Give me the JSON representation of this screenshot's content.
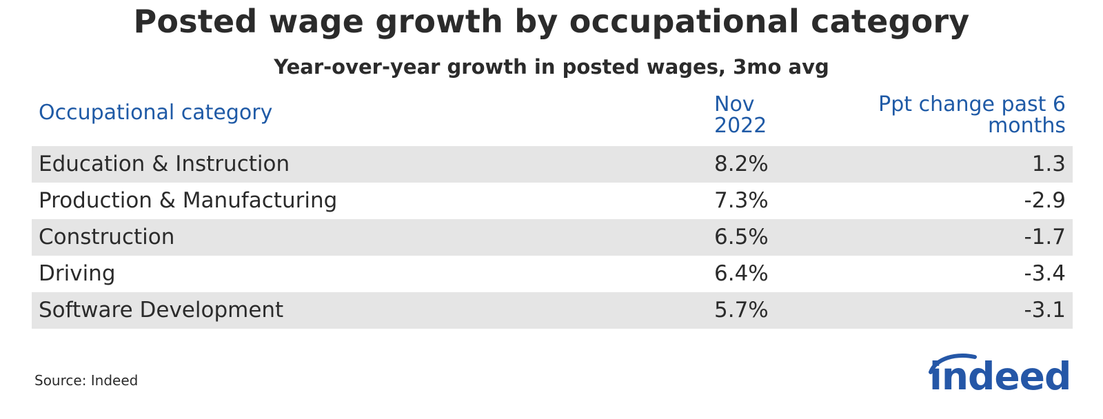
{
  "title": "Posted wage growth by occupational category",
  "subtitle": "Year-over-year growth in posted wages, 3mo avg",
  "source": "Source: Indeed",
  "logo_text": "indeed",
  "colors": {
    "header_text": "#1f5aa6",
    "row_shade": "#e5e5e5",
    "logo": "#2557a7"
  },
  "chart_data": {
    "type": "table",
    "title": "Posted wage growth by occupational category",
    "subtitle": "Year-over-year growth in posted wages, 3mo avg",
    "columns": [
      "Occupational category",
      "Nov 2022",
      "Ppt change past 6 months"
    ],
    "rows": [
      [
        "Education & Instruction",
        "8.2%",
        "1.3"
      ],
      [
        "Production & Manufacturing",
        "7.3%",
        "-2.9"
      ],
      [
        "Construction",
        "6.5%",
        "-1.7"
      ],
      [
        "Driving",
        "6.4%",
        "-3.4"
      ],
      [
        "Software Development",
        "5.7%",
        "-3.1"
      ]
    ]
  }
}
